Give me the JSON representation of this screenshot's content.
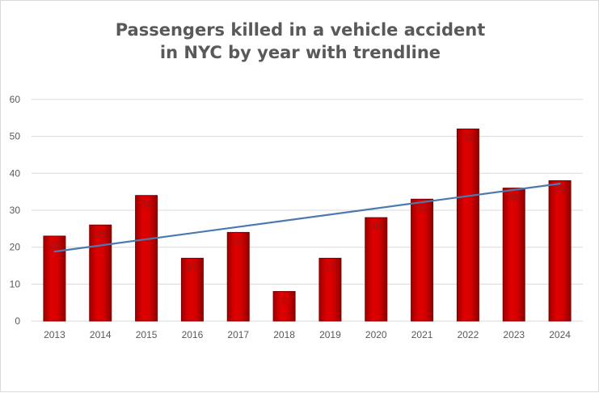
{
  "chart_data": {
    "type": "bar",
    "title_line1": "Passengers killed in a vehicle accident",
    "title_line2": "in NYC by year with trendline",
    "categories": [
      "2013",
      "2014",
      "2015",
      "2016",
      "2017",
      "2018",
      "2019",
      "2020",
      "2021",
      "2022",
      "2023",
      "2024"
    ],
    "values": [
      23,
      26,
      34,
      17,
      24,
      8,
      17,
      28,
      33,
      52,
      36,
      38
    ],
    "ylim": [
      0,
      60
    ],
    "yticks": [
      0,
      10,
      20,
      30,
      40,
      50,
      60
    ],
    "grid": true,
    "trendline": {
      "type": "linear",
      "start": 18.8,
      "end": 37.2
    },
    "colors": {
      "bar": "#c00000",
      "trendline": "#4a7ab0",
      "grid": "#d9d9d9",
      "axis_text": "#595959"
    }
  }
}
